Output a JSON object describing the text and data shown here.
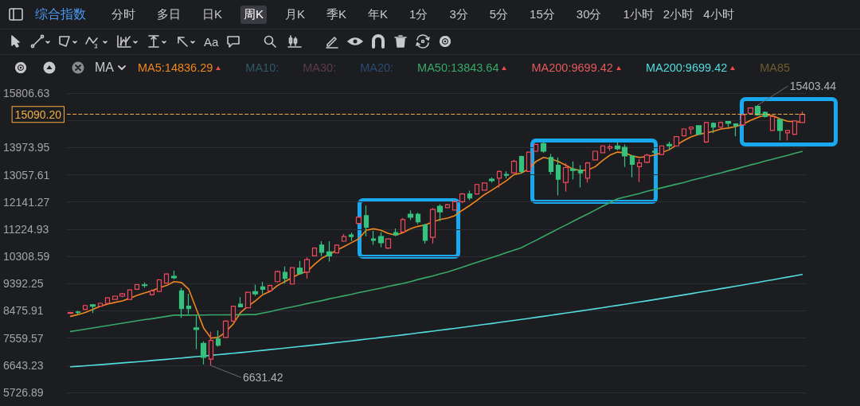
{
  "chart_data": {
    "type": "candlestick",
    "title": "综合指数",
    "categories": [
      null,
      null,
      null,
      null,
      null,
      null,
      null,
      null,
      null,
      null,
      null,
      null,
      null,
      null,
      null,
      null,
      null,
      null,
      null,
      null,
      null,
      null,
      null,
      null,
      null,
      null,
      null,
      null,
      null,
      null,
      null,
      null,
      null,
      null,
      null,
      null,
      null,
      null,
      null,
      null,
      null,
      null,
      null,
      null,
      null,
      null,
      null,
      null,
      null,
      null,
      null,
      null,
      null,
      null,
      null,
      null,
      null,
      null,
      null,
      null,
      null,
      null,
      null,
      null,
      null,
      null,
      null,
      null,
      null,
      null,
      null,
      null,
      null,
      null,
      null,
      null,
      null,
      null,
      null,
      null,
      null,
      null,
      null,
      null,
      null,
      null,
      null,
      null,
      null,
      null,
      null,
      null,
      null,
      null,
      null,
      null,
      null,
      null,
      null,
      null
    ],
    "ohlc": [
      [
        8390,
        8440,
        8370,
        8420
      ],
      [
        8440,
        8480,
        8360,
        8420
      ],
      [
        8525,
        8680,
        8500,
        8655
      ],
      [
        8680,
        8700,
        8400,
        8630
      ],
      [
        8630,
        8750,
        8610,
        8730
      ],
      [
        8730,
        8940,
        8710,
        8915
      ],
      [
        8860,
        8990,
        8840,
        8970
      ],
      [
        8970,
        9080,
        8940,
        9050
      ],
      [
        8860,
        9200,
        8840,
        9180
      ],
      [
        9200,
        9380,
        9180,
        9360
      ],
      [
        9350,
        9430,
        9250,
        9330
      ],
      [
        9020,
        9200,
        8990,
        9150
      ],
      [
        9130,
        9540,
        9110,
        9520
      ],
      [
        9410,
        9740,
        9390,
        9720
      ],
      [
        9640,
        9830,
        9540,
        9590
      ],
      [
        9150,
        9250,
        8240,
        8550
      ],
      [
        8630,
        9050,
        8370,
        8550
      ],
      [
        7900,
        8320,
        7190,
        7850
      ],
      [
        7380,
        7450,
        6670,
        6910
      ],
      [
        6850,
        7770,
        6631.42,
        7480
      ],
      [
        7530,
        7820,
        7270,
        7320
      ],
      [
        7580,
        8160,
        7560,
        8130
      ],
      [
        8130,
        8650,
        8100,
        8630
      ],
      [
        8700,
        8940,
        8600,
        8610
      ],
      [
        8580,
        9120,
        8560,
        9100
      ],
      [
        9120,
        9350,
        8980,
        9050
      ],
      [
        9280,
        9450,
        9050,
        9200
      ],
      [
        9150,
        9350,
        9130,
        9330
      ],
      [
        9460,
        9830,
        9430,
        9800
      ],
      [
        9770,
        9970,
        9400,
        9570
      ],
      [
        9380,
        9950,
        9360,
        9930
      ],
      [
        9910,
        10160,
        9700,
        9730
      ],
      [
        9780,
        10280,
        9560,
        10200
      ],
      [
        10330,
        10610,
        10310,
        10590
      ],
      [
        10690,
        10820,
        10320,
        10450
      ],
      [
        10460,
        10820,
        10140,
        10330
      ],
      [
        10430,
        10710,
        10410,
        10690
      ],
      [
        10820,
        11060,
        10800,
        10980
      ],
      [
        11030,
        11110,
        10830,
        10980
      ],
      [
        11420,
        11660,
        11400,
        11630
      ],
      [
        11680,
        12020,
        10990,
        11290
      ],
      [
        10900,
        11170,
        10700,
        10850
      ],
      [
        10980,
        11120,
        10610,
        10770
      ],
      [
        10590,
        10920,
        10560,
        10900
      ],
      [
        11110,
        11250,
        10990,
        11030
      ],
      [
        11130,
        11600,
        11100,
        11550
      ],
      [
        11730,
        11860,
        11530,
        11630
      ],
      [
        11730,
        11780,
        11400,
        11470
      ],
      [
        11370,
        11410,
        10740,
        10850
      ],
      [
        10950,
        11940,
        10740,
        11890
      ],
      [
        12000,
        12070,
        11500,
        11810
      ],
      [
        11950,
        12080,
        11930,
        12050
      ],
      [
        11870,
        12200,
        11850,
        12150
      ],
      [
        12150,
        12440,
        12100,
        12410
      ],
      [
        12410,
        12520,
        12200,
        12280
      ],
      [
        12410,
        12750,
        12390,
        12730
      ],
      [
        12540,
        12800,
        12520,
        12780
      ],
      [
        12910,
        12970,
        12800,
        12860
      ],
      [
        12940,
        13200,
        12620,
        13170
      ],
      [
        13070,
        13170,
        12940,
        13040
      ],
      [
        13120,
        13560,
        13090,
        13510
      ],
      [
        13670,
        13700,
        13100,
        13170
      ],
      [
        13170,
        13840,
        13150,
        13820
      ],
      [
        13850,
        14100,
        13820,
        14080
      ],
      [
        14110,
        14180,
        13800,
        13850
      ],
      [
        13640,
        13760,
        13070,
        13170
      ],
      [
        13380,
        13640,
        12360,
        12910
      ],
      [
        12800,
        13450,
        12490,
        13300
      ],
      [
        13250,
        13510,
        12900,
        13200
      ],
      [
        13220,
        13380,
        12630,
        13120
      ],
      [
        12940,
        13490,
        12800,
        13460
      ],
      [
        13560,
        13870,
        13540,
        13850
      ],
      [
        13800,
        14050,
        13780,
        14030
      ],
      [
        13950,
        14080,
        13860,
        14000
      ],
      [
        14030,
        14170,
        13880,
        13930
      ],
      [
        13980,
        14080,
        13320,
        13690
      ],
      [
        13690,
        13720,
        12970,
        13410
      ],
      [
        13330,
        13590,
        12810,
        13460
      ],
      [
        13480,
        13760,
        13450,
        13720
      ],
      [
        13850,
        13880,
        13800,
        13820
      ],
      [
        13740,
        14050,
        13720,
        14030
      ],
      [
        14080,
        14170,
        13880,
        14030
      ],
      [
        14030,
        14360,
        14010,
        14340
      ],
      [
        14370,
        14620,
        14350,
        14600
      ],
      [
        14600,
        14690,
        14420,
        14660
      ],
      [
        14710,
        14730,
        14400,
        14420
      ],
      [
        14160,
        14840,
        14130,
        14820
      ],
      [
        14790,
        14820,
        14460,
        14660
      ],
      [
        14660,
        14850,
        14610,
        14820
      ],
      [
        14850,
        14870,
        14660,
        14790
      ],
      [
        14770,
        14790,
        14350,
        14710
      ],
      [
        14740,
        15100,
        14720,
        15080
      ],
      [
        15130,
        15330,
        15110,
        15310
      ],
      [
        15360,
        15403.44,
        15050,
        15070
      ],
      [
        15160,
        15190,
        14990,
        15020
      ],
      [
        14550,
        15030,
        14550,
        15020
      ],
      [
        14920,
        14950,
        14210,
        14550
      ],
      [
        14470,
        14550,
        14210,
        14550
      ],
      [
        14420,
        14880,
        14400,
        14870
      ],
      [
        14820,
        15190,
        14800,
        15090.2
      ]
    ],
    "colors": [
      "#ef4a5c",
      "#35c27e",
      "#ef4a5c",
      "#35c27e",
      "#ef4a5c",
      "#ef4a5c",
      "#ef4a5c",
      "#ef4a5c",
      "#ef4a5c",
      "#ef4a5c",
      "#35c27e",
      "#ef4a5c",
      "#ef4a5c",
      "#ef4a5c",
      "#35c27e",
      "#35c27e",
      "#35c27e",
      "#35c27e",
      "#35c27e",
      "#ef4a5c",
      "#35c27e",
      "#ef4a5c",
      "#ef4a5c",
      "#35c27e",
      "#ef4a5c",
      "#35c27e",
      "#35c27e",
      "#ef4a5c",
      "#ef4a5c",
      "#35c27e",
      "#ef4a5c",
      "#35c27e",
      "#ef4a5c",
      "#ef4a5c",
      "#35c27e",
      "#35c27e",
      "#ef4a5c",
      "#ef4a5c",
      "#35c27e",
      "#ef4a5c",
      "#35c27e",
      "#35c27e",
      "#35c27e",
      "#ef4a5c",
      "#35c27e",
      "#ef4a5c",
      "#35c27e",
      "#35c27e",
      "#35c27e",
      "#ef4a5c",
      "#35c27e",
      "#ef4a5c",
      "#ef4a5c",
      "#ef4a5c",
      "#35c27e",
      "#ef4a5c",
      "#ef4a5c",
      "#35c27e",
      "#ef4a5c",
      "#35c27e",
      "#ef4a5c",
      "#35c27e",
      "#ef4a5c",
      "#ef4a5c",
      "#35c27e",
      "#35c27e",
      "#35c27e",
      "#ef4a5c",
      "#35c27e",
      "#35c27e",
      "#ef4a5c",
      "#ef4a5c",
      "#ef4a5c",
      "#ef4a5c",
      "#35c27e",
      "#35c27e",
      "#35c27e",
      "#ef4a5c",
      "#ef4a5c",
      "#35c27e",
      "#ef4a5c",
      "#35c27e",
      "#ef4a5c",
      "#ef4a5c",
      "#ef4a5c",
      "#35c27e",
      "#ef4a5c",
      "#35c27e",
      "#ef4a5c",
      "#35c27e",
      "#35c27e",
      "#ef4a5c",
      "#ef4a5c",
      "#35c27e",
      "#35c27e",
      "#ef4a5c",
      "#35c27e",
      "#ef4a5c",
      "#ef4a5c",
      "#ef4a5c"
    ],
    "series": [
      {
        "type": "line",
        "name": "MA5:14836.29",
        "color": "#f0861e",
        "values": [
          8290,
          8350,
          8420,
          8520,
          8630,
          8700,
          8760,
          8810,
          8900,
          9000,
          9080,
          9150,
          9250,
          9330,
          9460,
          9430,
          9200,
          8550,
          7900,
          7560,
          7580,
          7770,
          8030,
          8420,
          8630,
          8810,
          9020,
          9130,
          9330,
          9460,
          9600,
          9720,
          9800,
          10040,
          10250,
          10380,
          10510,
          10640,
          10770,
          10900,
          11190,
          11240,
          11190,
          11080,
          11030,
          11110,
          11240,
          11320,
          11370,
          11470,
          11550,
          11600,
          11680,
          11860,
          12020,
          12200,
          12390,
          12540,
          12700,
          12860,
          13060,
          13120,
          13250,
          13510,
          13640,
          13590,
          13510,
          13380,
          13250,
          13200,
          13220,
          13330,
          13540,
          13720,
          13820,
          13800,
          13690,
          13640,
          13670,
          13720,
          13800,
          13900,
          14060,
          14210,
          14340,
          14420,
          14470,
          14520,
          14600,
          14630,
          14680,
          14760,
          14890,
          14990,
          15070,
          15050,
          14940,
          14860,
          14840,
          14836.29
        ]
      },
      {
        "type": "line",
        "name": "MA50:13843.64",
        "color": "#37a868",
        "values": [
          7780,
          7820,
          7860,
          7900,
          7940,
          7980,
          8020,
          8060,
          8100,
          8140,
          8180,
          8210,
          8250,
          8290,
          8330,
          8330,
          8330,
          8335,
          8335,
          8340,
          8340,
          8340,
          8345,
          8345,
          8350,
          8350,
          8400,
          8450,
          8510,
          8560,
          8610,
          8660,
          8720,
          8770,
          8820,
          8880,
          8930,
          8980,
          9030,
          9090,
          9140,
          9190,
          9240,
          9300,
          9350,
          9400,
          9460,
          9530,
          9590,
          9650,
          9720,
          9780,
          9860,
          9940,
          10030,
          10110,
          10190,
          10270,
          10350,
          10440,
          10520,
          10600,
          10730,
          10850,
          10980,
          11110,
          11240,
          11360,
          11490,
          11620,
          11740,
          11870,
          12000,
          12120,
          12250,
          12310,
          12370,
          12430,
          12500,
          12560,
          12620,
          12680,
          12740,
          12800,
          12870,
          12930,
          12990,
          13060,
          13120,
          13190,
          13250,
          13320,
          13390,
          13450,
          13520,
          13580,
          13650,
          13710,
          13780,
          13843.64
        ]
      },
      {
        "type": "line",
        "name": "MA200:9699.42",
        "color": "#52dcdc",
        "values": [
          6590,
          6608,
          6626,
          6645,
          6663,
          6682,
          6702,
          6721,
          6741,
          6761,
          6781,
          6802,
          6823,
          6844,
          6866,
          6887,
          6909,
          6932,
          6954,
          6977,
          7000,
          7024,
          7047,
          7071,
          7096,
          7120,
          7145,
          7170,
          7195,
          7221,
          7247,
          7273,
          7299,
          7326,
          7353,
          7380,
          7408,
          7436,
          7464,
          7492,
          7521,
          7550,
          7579,
          7608,
          7638,
          7668,
          7699,
          7729,
          7760,
          7791,
          7823,
          7854,
          7886,
          7918,
          7951,
          7984,
          8017,
          8050,
          8084,
          8118,
          8152,
          8186,
          8221,
          8256,
          8291,
          8327,
          8363,
          8399,
          8435,
          8472,
          8509,
          8546,
          8583,
          8621,
          8659,
          8698,
          8736,
          8775,
          8814,
          8854,
          8893,
          8933,
          8973,
          9014,
          9055,
          9096,
          9137,
          9179,
          9221,
          9263,
          9305,
          9348,
          9391,
          9434,
          9478,
          9522,
          9566,
          9610,
          9655,
          9699.42
        ]
      }
    ],
    "ylim": [
      5726.89,
      15806.63
    ],
    "yticks": [
      5726.89,
      6643.23,
      7559.57,
      8475.91,
      9392.25,
      10308.59,
      11224.93,
      12141.27,
      13057.61,
      13973.95,
      {
        "value": 14890.29,
        "label": null
      },
      15806.63
    ],
    "grid": "y",
    "legend": "top",
    "tick_labels": "y",
    "ref_lines": [
      {
        "axis": "y",
        "value": 15090.2,
        "label": "15090.20",
        "color": "#f2ae45",
        "line_style": "dashed"
      }
    ],
    "annotations": [
      "分时",
      "多日",
      "日K",
      "周K",
      "月K",
      "季K",
      "年K",
      "1分",
      "3分",
      "5分",
      "15分",
      "30分",
      "1小时",
      "2小时",
      "4小时",
      "Aa",
      "MA",
      "MA10:",
      "MA30:",
      "MA20:",
      "MA200:9699.42",
      "MA85",
      "6631.42",
      "15403.44"
    ]
  }
}
